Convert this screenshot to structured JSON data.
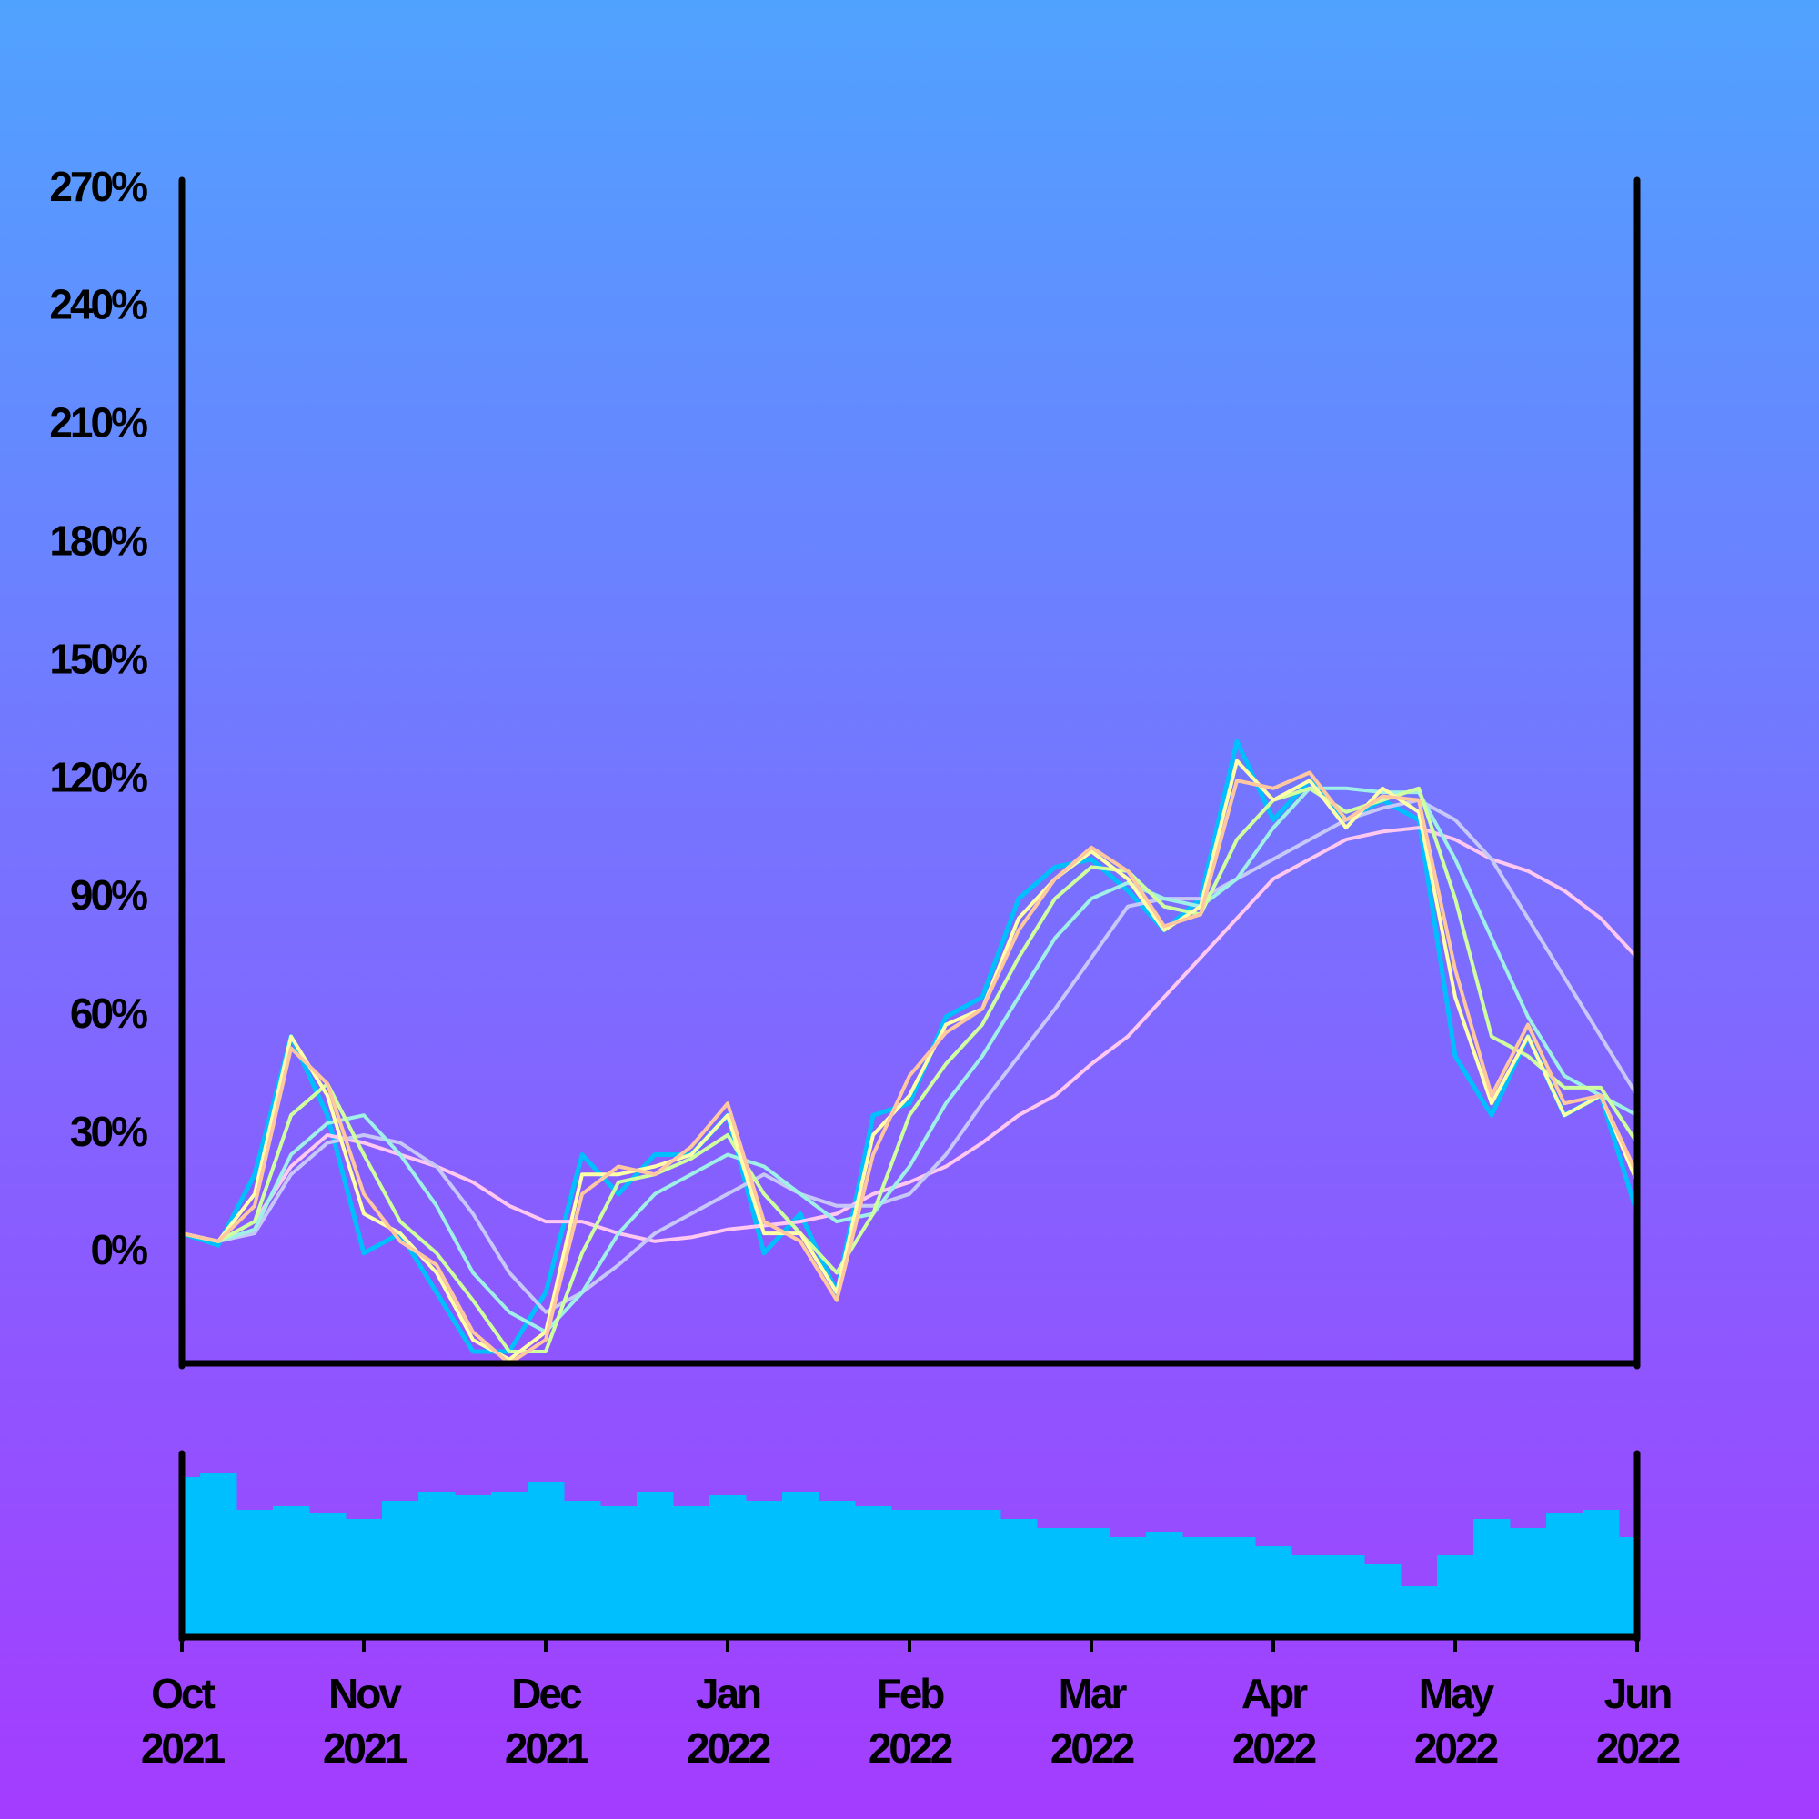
{
  "chart_data": [
    {
      "type": "line",
      "x": [
        0,
        0.2,
        0.4,
        0.6,
        0.8,
        1,
        1.2,
        1.4,
        1.6,
        1.8,
        2,
        2.2,
        2.4,
        2.6,
        2.8,
        3,
        3.2,
        3.4,
        3.6,
        3.8,
        4,
        4.2,
        4.4,
        4.6,
        4.8,
        5,
        5.2,
        5.4,
        5.6,
        5.8,
        6,
        6.2,
        6.4,
        6.6,
        6.8,
        7,
        7.2,
        7.4,
        7.6,
        7.8,
        8
      ],
      "xlim": [
        0,
        8
      ],
      "ylim": [
        -28,
        272
      ],
      "yticks": [
        {
          "value": 0,
          "label": "0%"
        },
        {
          "value": 30,
          "label": "30%"
        },
        {
          "value": 60,
          "label": "60%"
        },
        {
          "value": 90,
          "label": "90%"
        },
        {
          "value": 120,
          "label": "120%"
        },
        {
          "value": 150,
          "label": "150%"
        },
        {
          "value": 180,
          "label": "180%"
        },
        {
          "value": 210,
          "label": "210%"
        },
        {
          "value": 240,
          "label": "240%"
        },
        {
          "value": 270,
          "label": "270%"
        }
      ],
      "series": [
        {
          "color": "#00bfff",
          "values": [
            5,
            2,
            20,
            55,
            35,
            0,
            5,
            -10,
            -25,
            -25,
            -10,
            25,
            15,
            25,
            25,
            35,
            0,
            10,
            -10,
            35,
            38,
            60,
            65,
            90,
            98,
            100,
            92,
            82,
            90,
            130,
            110,
            120,
            110,
            115,
            110,
            50,
            35,
            55,
            35,
            40,
            10
          ]
        },
        {
          "color": "#ffc8f0",
          "values": [
            5,
            3,
            8,
            22,
            30,
            28,
            25,
            22,
            18,
            12,
            8,
            8,
            5,
            3,
            4,
            6,
            7,
            8,
            10,
            15,
            18,
            22,
            28,
            35,
            40,
            48,
            55,
            65,
            75,
            85,
            95,
            100,
            105,
            107,
            108,
            105,
            100,
            97,
            92,
            85,
            75
          ]
        },
        {
          "color": "#c8c8f8",
          "values": [
            5,
            3,
            5,
            20,
            28,
            30,
            28,
            22,
            10,
            -5,
            -15,
            -10,
            -3,
            5,
            10,
            15,
            20,
            15,
            12,
            12,
            15,
            25,
            38,
            50,
            62,
            75,
            88,
            90,
            90,
            95,
            100,
            105,
            110,
            113,
            115,
            110,
            100,
            85,
            70,
            55,
            40
          ]
        },
        {
          "color": "#a0f0e8",
          "values": [
            5,
            3,
            6,
            25,
            33,
            35,
            25,
            12,
            -5,
            -15,
            -20,
            -10,
            5,
            15,
            20,
            25,
            22,
            15,
            8,
            10,
            22,
            38,
            50,
            65,
            80,
            90,
            94,
            90,
            88,
            95,
            108,
            118,
            118,
            117,
            117,
            100,
            80,
            60,
            45,
            40,
            35
          ]
        },
        {
          "color": "#d0ffa0",
          "values": [
            5,
            3,
            8,
            35,
            43,
            25,
            8,
            0,
            -12,
            -25,
            -25,
            0,
            18,
            20,
            24,
            30,
            15,
            5,
            -5,
            10,
            35,
            48,
            58,
            75,
            90,
            98,
            97,
            88,
            86,
            105,
            115,
            118,
            112,
            115,
            118,
            90,
            55,
            50,
            42,
            42,
            28
          ]
        },
        {
          "color": "#ffffa8",
          "values": [
            5,
            3,
            15,
            55,
            40,
            10,
            5,
            -5,
            -22,
            -27,
            -20,
            20,
            20,
            22,
            25,
            35,
            5,
            5,
            -10,
            30,
            40,
            58,
            62,
            85,
            95,
            102,
            95,
            82,
            88,
            125,
            115,
            120,
            108,
            118,
            112,
            65,
            38,
            55,
            35,
            40,
            18
          ]
        },
        {
          "color": "#ffc8a0",
          "values": [
            5,
            3,
            12,
            52,
            43,
            15,
            3,
            -3,
            -20,
            -28,
            -22,
            15,
            22,
            20,
            27,
            38,
            8,
            3,
            -12,
            25,
            45,
            56,
            62,
            82,
            95,
            103,
            97,
            83,
            86,
            120,
            118,
            122,
            110,
            116,
            115,
            72,
            40,
            58,
            38,
            40,
            20
          ]
        }
      ]
    },
    {
      "type": "bar",
      "x": [
        0,
        0.2,
        0.4,
        0.6,
        0.8,
        1,
        1.2,
        1.4,
        1.6,
        1.8,
        2,
        2.2,
        2.4,
        2.6,
        2.8,
        3,
        3.2,
        3.4,
        3.6,
        3.8,
        4,
        4.2,
        4.4,
        4.6,
        4.8,
        5,
        5.2,
        5.4,
        5.6,
        5.8,
        6,
        6.2,
        6.4,
        6.6,
        6.8,
        7,
        7.2,
        7.4,
        7.6,
        7.8,
        8
      ],
      "xlim": [
        0,
        8
      ],
      "ylim": [
        0,
        100
      ],
      "color": "#00bfff",
      "values": [
        88,
        90,
        70,
        72,
        68,
        65,
        75,
        80,
        78,
        80,
        85,
        75,
        72,
        80,
        72,
        78,
        75,
        80,
        75,
        72,
        70,
        70,
        70,
        65,
        60,
        60,
        55,
        58,
        55,
        55,
        50,
        45,
        45,
        40,
        28,
        45,
        65,
        60,
        68,
        70,
        55
      ],
      "xticks": [
        {
          "value": 0,
          "label": [
            "Oct",
            "2021"
          ]
        },
        {
          "value": 1,
          "label": [
            "Nov",
            "2021"
          ]
        },
        {
          "value": 2,
          "label": [
            "Dec",
            "2021"
          ]
        },
        {
          "value": 3,
          "label": [
            "Jan",
            "2022"
          ]
        },
        {
          "value": 4,
          "label": [
            "Feb",
            "2022"
          ]
        },
        {
          "value": 5,
          "label": [
            "Mar",
            "2022"
          ]
        },
        {
          "value": 6,
          "label": [
            "Apr",
            "2022"
          ]
        },
        {
          "value": 7,
          "label": [
            "May",
            "2022"
          ]
        },
        {
          "value": 8,
          "label": [
            "Jun",
            "2022"
          ]
        }
      ]
    }
  ]
}
